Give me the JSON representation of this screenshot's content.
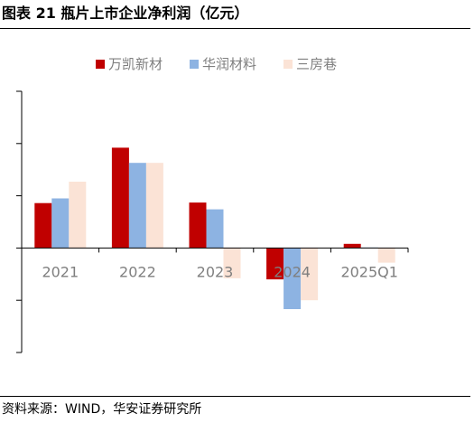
{
  "figure": {
    "title": "图表 21  瓶片上市企业净利润（亿元）",
    "source": "资料来源：WIND，华安证券研究所"
  },
  "chart_data": {
    "type": "bar",
    "title": "",
    "xlabel": "",
    "ylabel": "",
    "categories": [
      "2021",
      "2022",
      "2023",
      "2024",
      "2025Q1"
    ],
    "series": [
      {
        "name": "万凯新材",
        "color": "#c00000",
        "values": [
          8.6,
          19.2,
          8.7,
          -6.0,
          0.8
        ]
      },
      {
        "name": "华润材料",
        "color": "#8db3e2",
        "values": [
          9.5,
          16.3,
          7.4,
          -11.7,
          0.1
        ]
      },
      {
        "name": "三房巷",
        "color": "#fbe3d6",
        "values": [
          12.7,
          16.3,
          -5.8,
          -10.0,
          -2.8
        ]
      }
    ],
    "ylim": [
      -20,
      30
    ],
    "y_ticks_labeled": false,
    "grid": false,
    "legend": "top-center"
  }
}
